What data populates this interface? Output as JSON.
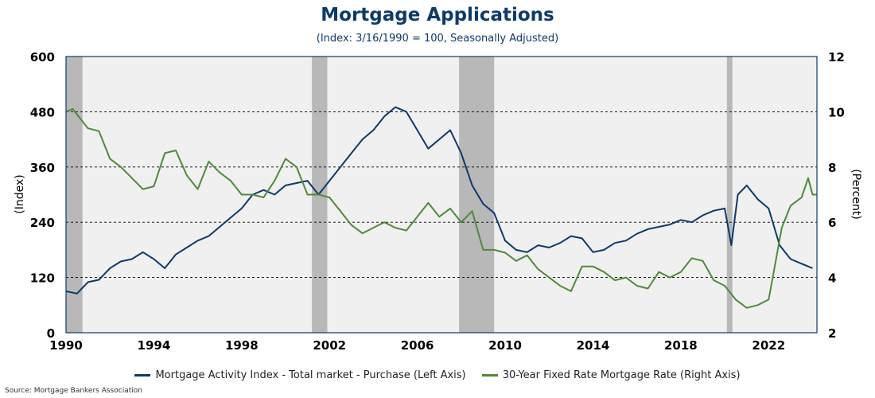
{
  "chart_data": {
    "type": "line",
    "title": "Mortgage Applications",
    "subtitle": "(Index: 3/16/1990 = 100, Seasonally Adjusted)",
    "ylabel_left": "(Index)",
    "ylabel_right": "(Percent)",
    "x_range": [
      1990,
      2024.2
    ],
    "ylim_left": [
      0,
      600
    ],
    "ylim_right": [
      2,
      12
    ],
    "x_ticks": [
      "1990",
      "1994",
      "1998",
      "2002",
      "2006",
      "2010",
      "2014",
      "2018",
      "2022"
    ],
    "y_ticks_left": [
      "0",
      "120",
      "240",
      "360",
      "480",
      "600"
    ],
    "y_ticks_right": [
      "2",
      "4",
      "6",
      "8",
      "10",
      "12"
    ],
    "recessions": [
      [
        1990.0,
        1990.75
      ],
      [
        2001.2,
        2001.9
      ],
      [
        2007.9,
        2009.5
      ],
      [
        2020.1,
        2020.35
      ]
    ],
    "grid": "horizontal-dashed",
    "legend_position": "bottom",
    "series": [
      {
        "name": "Mortgage Activity Index - Total market - Purchase (Left Axis)",
        "axis": "left",
        "color": "#0d3a6b",
        "x": [
          1990.0,
          1990.5,
          1991.0,
          1991.5,
          1992.0,
          1992.5,
          1993.0,
          1993.5,
          1994.0,
          1994.5,
          1995.0,
          1995.5,
          1996.0,
          1996.5,
          1997.0,
          1997.5,
          1998.0,
          1998.5,
          1999.0,
          1999.5,
          2000.0,
          2000.5,
          2001.0,
          2001.5,
          2002.0,
          2002.5,
          2003.0,
          2003.5,
          2004.0,
          2004.5,
          2005.0,
          2005.5,
          2006.0,
          2006.5,
          2007.0,
          2007.5,
          2008.0,
          2008.5,
          2009.0,
          2009.5,
          2010.0,
          2010.5,
          2011.0,
          2011.5,
          2012.0,
          2012.5,
          2013.0,
          2013.5,
          2014.0,
          2014.5,
          2015.0,
          2015.5,
          2016.0,
          2016.5,
          2017.0,
          2017.5,
          2018.0,
          2018.5,
          2019.0,
          2019.5,
          2020.0,
          2020.3,
          2020.6,
          2021.0,
          2021.5,
          2022.0,
          2022.5,
          2023.0,
          2023.5,
          2024.0
        ],
        "y": [
          90,
          85,
          110,
          115,
          140,
          155,
          160,
          175,
          160,
          140,
          170,
          185,
          200,
          210,
          230,
          250,
          270,
          300,
          310,
          300,
          320,
          325,
          330,
          300,
          330,
          360,
          390,
          420,
          440,
          470,
          490,
          480,
          440,
          400,
          420,
          440,
          390,
          320,
          280,
          260,
          200,
          180,
          175,
          190,
          185,
          195,
          210,
          205,
          175,
          180,
          195,
          200,
          215,
          225,
          230,
          235,
          245,
          240,
          255,
          265,
          270,
          190,
          300,
          320,
          290,
          270,
          190,
          160,
          150,
          140
        ]
      },
      {
        "name": "30-Year Fixed Rate Mortgage Rate (Right Axis)",
        "axis": "right",
        "color": "#4f8a3a",
        "x": [
          1990.0,
          1990.3,
          1990.6,
          1991.0,
          1991.5,
          1992.0,
          1992.5,
          1993.0,
          1993.5,
          1994.0,
          1994.5,
          1995.0,
          1995.5,
          1996.0,
          1996.5,
          1997.0,
          1997.5,
          1998.0,
          1998.5,
          1999.0,
          1999.5,
          2000.0,
          2000.5,
          2001.0,
          2001.5,
          2002.0,
          2002.5,
          2003.0,
          2003.5,
          2004.0,
          2004.5,
          2005.0,
          2005.5,
          2006.0,
          2006.5,
          2007.0,
          2007.5,
          2008.0,
          2008.5,
          2009.0,
          2009.5,
          2010.0,
          2010.5,
          2011.0,
          2011.5,
          2012.0,
          2012.5,
          2013.0,
          2013.5,
          2014.0,
          2014.5,
          2015.0,
          2015.5,
          2016.0,
          2016.5,
          2017.0,
          2017.5,
          2018.0,
          2018.5,
          2019.0,
          2019.5,
          2020.0,
          2020.5,
          2021.0,
          2021.5,
          2022.0,
          2022.3,
          2022.6,
          2023.0,
          2023.5,
          2023.8,
          2024.0,
          2024.2
        ],
        "y": [
          10.0,
          10.1,
          9.8,
          9.4,
          9.3,
          8.3,
          8.0,
          7.6,
          7.2,
          7.3,
          8.5,
          8.6,
          7.7,
          7.2,
          8.2,
          7.8,
          7.5,
          7.0,
          7.0,
          6.9,
          7.5,
          8.3,
          8.0,
          7.0,
          7.0,
          6.9,
          6.4,
          5.9,
          5.6,
          5.8,
          6.0,
          5.8,
          5.7,
          6.2,
          6.7,
          6.2,
          6.5,
          6.0,
          6.4,
          5.0,
          5.0,
          4.9,
          4.6,
          4.8,
          4.3,
          4.0,
          3.7,
          3.5,
          4.4,
          4.4,
          4.2,
          3.9,
          4.0,
          3.7,
          3.6,
          4.2,
          4.0,
          4.2,
          4.7,
          4.6,
          3.9,
          3.7,
          3.2,
          2.9,
          3.0,
          3.2,
          4.5,
          5.8,
          6.6,
          6.9,
          7.6,
          7.0,
          7.0
        ]
      }
    ]
  },
  "source": "Source: Mortgage Bankers Association"
}
